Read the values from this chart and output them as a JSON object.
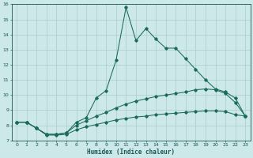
{
  "xlabel": "Humidex (Indice chaleur)",
  "bg_color": "#cce8e8",
  "grid_color": "#aacccc",
  "line_color": "#1a6b5a",
  "xlim": [
    -0.5,
    23.5
  ],
  "ylim": [
    7,
    16
  ],
  "xticks": [
    0,
    1,
    2,
    3,
    4,
    5,
    6,
    7,
    8,
    9,
    10,
    11,
    12,
    13,
    14,
    15,
    16,
    17,
    18,
    19,
    20,
    21,
    22,
    23
  ],
  "yticks": [
    7,
    8,
    9,
    10,
    11,
    12,
    13,
    14,
    15,
    16
  ],
  "line1_x": [
    0,
    1,
    2,
    3,
    4,
    5,
    6,
    7,
    8,
    9,
    10,
    11,
    12,
    13,
    14,
    15,
    16,
    17,
    18,
    19,
    20,
    21,
    22,
    23
  ],
  "line1_y": [
    8.2,
    8.2,
    7.8,
    7.4,
    7.4,
    7.5,
    8.2,
    8.5,
    9.8,
    10.3,
    12.3,
    15.8,
    13.6,
    14.4,
    13.7,
    13.1,
    13.1,
    12.4,
    11.7,
    11.0,
    10.4,
    10.2,
    9.8,
    8.6
  ],
  "line2_x": [
    0,
    1,
    2,
    3,
    4,
    5,
    6,
    7,
    8,
    9,
    10,
    11,
    12,
    13,
    14,
    15,
    16,
    17,
    18,
    19,
    20,
    21,
    22,
    23
  ],
  "line2_y": [
    8.2,
    8.2,
    7.8,
    7.4,
    7.4,
    7.5,
    8.0,
    8.3,
    8.6,
    8.85,
    9.15,
    9.4,
    9.6,
    9.75,
    9.9,
    10.0,
    10.1,
    10.2,
    10.35,
    10.4,
    10.35,
    10.1,
    9.5,
    8.6
  ],
  "line3_x": [
    0,
    1,
    2,
    3,
    4,
    5,
    6,
    7,
    8,
    9,
    10,
    11,
    12,
    13,
    14,
    15,
    16,
    17,
    18,
    19,
    20,
    21,
    22,
    23
  ],
  "line3_y": [
    8.2,
    8.2,
    7.8,
    7.35,
    7.35,
    7.4,
    7.7,
    7.9,
    8.05,
    8.2,
    8.35,
    8.45,
    8.55,
    8.6,
    8.7,
    8.75,
    8.8,
    8.85,
    8.9,
    8.95,
    8.95,
    8.9,
    8.7,
    8.6
  ]
}
